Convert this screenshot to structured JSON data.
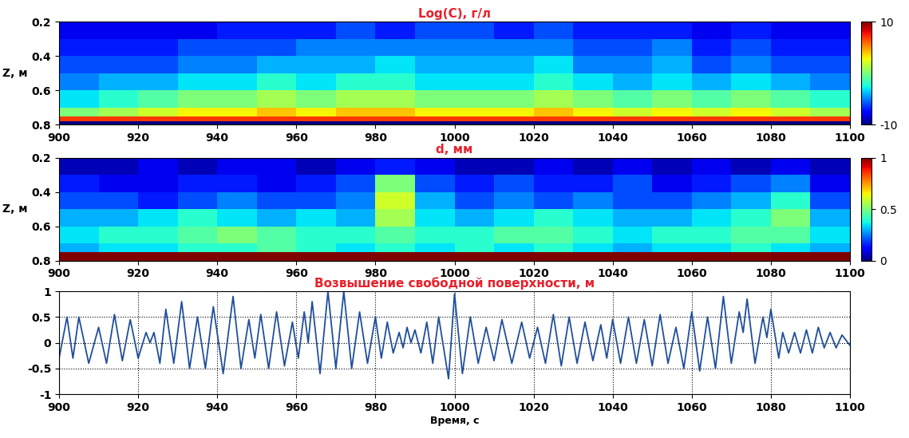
{
  "chart_data": [
    {
      "type": "heatmap",
      "title": "Log(C), г/л",
      "ylabel": "Z, м",
      "x_edges": [
        900,
        910,
        920,
        930,
        940,
        950,
        960,
        970,
        980,
        990,
        1000,
        1010,
        1020,
        1030,
        1040,
        1050,
        1060,
        1070,
        1080,
        1090,
        1100
      ],
      "y_edges": [
        0.2,
        0.3,
        0.4,
        0.5,
        0.6,
        0.7,
        0.75,
        0.78,
        0.8
      ],
      "cells": [
        [
          -8,
          -8,
          -8,
          -8,
          -7,
          -7,
          -7,
          -6,
          -7,
          -6,
          -6,
          -7,
          -6,
          -7,
          -7,
          -7,
          -8,
          -7,
          -8,
          -8
        ],
        [
          -7,
          -7,
          -7,
          -6,
          -6,
          -6,
          -5,
          -5,
          -5,
          -5,
          -5,
          -5,
          -5,
          -6,
          -6,
          -5,
          -7,
          -6,
          -7,
          -7
        ],
        [
          -6,
          -6,
          -6,
          -5,
          -5,
          -4,
          -4,
          -4,
          -3,
          -4,
          -4,
          -4,
          -3,
          -5,
          -5,
          -4,
          -6,
          -5,
          -6,
          -6
        ],
        [
          -5,
          -4,
          -4,
          -3,
          -3,
          -2,
          -3,
          -2,
          -2,
          -3,
          -3,
          -3,
          -2,
          -3,
          -4,
          -3,
          -4,
          -3,
          -4,
          -5
        ],
        [
          -3,
          -2,
          -1,
          0,
          0,
          1,
          0,
          1,
          1,
          0,
          0,
          0,
          1,
          0,
          -1,
          0,
          -1,
          0,
          -1,
          -2
        ],
        [
          0,
          1,
          2,
          3,
          3,
          4,
          3,
          4,
          4,
          3,
          3,
          3,
          4,
          3,
          2,
          3,
          2,
          3,
          2,
          1
        ],
        [
          7,
          7,
          7,
          7,
          7,
          7,
          7,
          7,
          7,
          7,
          7,
          7,
          7,
          7,
          7,
          7,
          7,
          7,
          7,
          7
        ],
        [
          -10,
          -10,
          -10,
          -10,
          -10,
          -10,
          -10,
          -10,
          -10,
          -10,
          -10,
          -10,
          -10,
          -10,
          -10,
          -10,
          -10,
          -10,
          -10,
          -10
        ]
      ],
      "xlim": [
        900,
        1100
      ],
      "xticks": [
        900,
        920,
        940,
        960,
        980,
        1000,
        1020,
        1040,
        1060,
        1080,
        1100
      ],
      "ylim": [
        0.8,
        0.2
      ],
      "yticks": [
        0.2,
        0.4,
        0.6,
        0.8
      ],
      "colorbar_range": [
        -10,
        10
      ],
      "colorbar_ticks": [
        -10,
        10
      ]
    },
    {
      "type": "heatmap",
      "title": "d, мм",
      "ylabel": "Z, м",
      "x_edges": [
        900,
        910,
        920,
        930,
        940,
        950,
        960,
        970,
        980,
        990,
        1000,
        1010,
        1020,
        1030,
        1040,
        1050,
        1060,
        1070,
        1080,
        1090,
        1100
      ],
      "y_edges": [
        0.2,
        0.3,
        0.4,
        0.5,
        0.6,
        0.7,
        0.75,
        0.78,
        0.8
      ],
      "cells": [
        [
          0.05,
          0.05,
          0.1,
          0.05,
          0.1,
          0.1,
          0.05,
          0.1,
          0.15,
          0.1,
          0.05,
          0.05,
          0.1,
          0.05,
          0.1,
          0.05,
          0.1,
          0.05,
          0.1,
          0.05
        ],
        [
          0.15,
          0.1,
          0.1,
          0.15,
          0.15,
          0.1,
          0.15,
          0.2,
          0.5,
          0.2,
          0.15,
          0.2,
          0.15,
          0.15,
          0.2,
          0.1,
          0.15,
          0.2,
          0.25,
          0.1
        ],
        [
          0.2,
          0.2,
          0.15,
          0.2,
          0.25,
          0.2,
          0.2,
          0.25,
          0.6,
          0.3,
          0.2,
          0.25,
          0.2,
          0.25,
          0.2,
          0.2,
          0.25,
          0.3,
          0.4,
          0.2
        ],
        [
          0.3,
          0.3,
          0.35,
          0.4,
          0.35,
          0.3,
          0.35,
          0.3,
          0.55,
          0.35,
          0.3,
          0.35,
          0.4,
          0.35,
          0.3,
          0.3,
          0.35,
          0.4,
          0.5,
          0.3
        ],
        [
          0.35,
          0.4,
          0.4,
          0.45,
          0.5,
          0.45,
          0.4,
          0.4,
          0.45,
          0.4,
          0.4,
          0.45,
          0.45,
          0.4,
          0.35,
          0.4,
          0.4,
          0.45,
          0.45,
          0.35
        ],
        [
          0.3,
          0.35,
          0.35,
          0.4,
          0.4,
          0.45,
          0.4,
          0.35,
          0.4,
          0.35,
          0.4,
          0.35,
          0.4,
          0.35,
          0.3,
          0.35,
          0.35,
          0.4,
          0.35,
          0.3
        ],
        [
          1,
          1,
          1,
          1,
          1,
          1,
          1,
          1,
          1,
          1,
          1,
          1,
          1,
          1,
          1,
          1,
          1,
          1,
          1,
          1
        ],
        [
          1,
          1,
          1,
          1,
          1,
          1,
          1,
          1,
          1,
          1,
          1,
          1,
          1,
          1,
          1,
          1,
          1,
          1,
          1,
          1
        ]
      ],
      "xlim": [
        900,
        1100
      ],
      "xticks": [
        900,
        920,
        940,
        960,
        980,
        1000,
        1020,
        1040,
        1060,
        1080,
        1100
      ],
      "ylim": [
        0.8,
        0.2
      ],
      "yticks": [
        0.2,
        0.4,
        0.6,
        0.8
      ],
      "colorbar_range": [
        0,
        1
      ],
      "colorbar_ticks": [
        0,
        0.5,
        1
      ]
    },
    {
      "type": "line",
      "title": "Возвышение свободной поверхности, м",
      "xlabel": "Время, с",
      "color": "#1f4e9c",
      "grid": true,
      "x": [
        900,
        902,
        903.5,
        905,
        907.5,
        910,
        912,
        914,
        916,
        918,
        920,
        922,
        923,
        924,
        925.5,
        927,
        929,
        931,
        933,
        935,
        937,
        939,
        941.5,
        944,
        946,
        948,
        949.5,
        951,
        953,
        955,
        957,
        959,
        960.5,
        962,
        963,
        964,
        966,
        968,
        970,
        972,
        974,
        976,
        978,
        980,
        981.5,
        983,
        984.5,
        986,
        987,
        988,
        989,
        990,
        991.5,
        993,
        994.5,
        996,
        998.5,
        1000,
        1002,
        1004,
        1006,
        1008,
        1010,
        1012,
        1014.5,
        1017,
        1019,
        1021,
        1023,
        1025,
        1027,
        1029,
        1031,
        1033,
        1035,
        1037,
        1038.5,
        1040,
        1042,
        1044,
        1046,
        1048,
        1050,
        1052,
        1054,
        1056,
        1058,
        1060,
        1062,
        1064,
        1066,
        1068,
        1070,
        1072,
        1073,
        1074,
        1076,
        1078,
        1079,
        1080,
        1082,
        1083,
        1084.5,
        1086,
        1087.5,
        1089,
        1090.5,
        1092,
        1093.5,
        1095,
        1096.5,
        1098,
        1100
      ],
      "values": [
        -0.3,
        0.5,
        -0.3,
        0.5,
        -0.4,
        0.3,
        -0.4,
        0.55,
        -0.35,
        0.45,
        -0.3,
        0.2,
        0.0,
        0.2,
        -0.4,
        0.65,
        -0.4,
        0.8,
        -0.5,
        0.5,
        -0.5,
        0.7,
        -0.6,
        0.9,
        -0.5,
        0.45,
        -0.3,
        0.55,
        -0.5,
        0.6,
        -0.45,
        0.4,
        -0.3,
        0.6,
        0.0,
        0.8,
        -0.6,
        1.0,
        -0.5,
        1.0,
        -0.5,
        0.6,
        -0.4,
        0.5,
        -0.3,
        0.4,
        -0.2,
        0.2,
        -0.1,
        0.3,
        0.0,
        0.25,
        -0.2,
        0.4,
        -0.4,
        0.5,
        -0.7,
        0.95,
        -0.6,
        0.5,
        -0.4,
        0.3,
        -0.35,
        0.45,
        -0.4,
        0.4,
        -0.3,
        0.3,
        -0.4,
        0.55,
        -0.45,
        0.5,
        -0.4,
        0.4,
        -0.35,
        0.35,
        -0.3,
        0.45,
        -0.4,
        0.5,
        -0.4,
        0.45,
        -0.45,
        0.55,
        -0.4,
        0.3,
        -0.5,
        0.6,
        -0.55,
        0.5,
        -0.5,
        0.9,
        -0.4,
        0.6,
        0.2,
        0.85,
        -0.4,
        0.5,
        0.1,
        0.65,
        -0.3,
        0.2,
        -0.2,
        0.2,
        -0.2,
        0.25,
        -0.2,
        0.3,
        -0.1,
        0.2,
        -0.1,
        0.15,
        -0.05
      ],
      "xlim": [
        900,
        1100
      ],
      "xticks": [
        900,
        920,
        940,
        960,
        980,
        1000,
        1020,
        1040,
        1060,
        1080,
        1100
      ],
      "ylim": [
        -1,
        1
      ],
      "yticks": [
        -1,
        -0.5,
        0,
        0.5,
        1
      ]
    }
  ]
}
